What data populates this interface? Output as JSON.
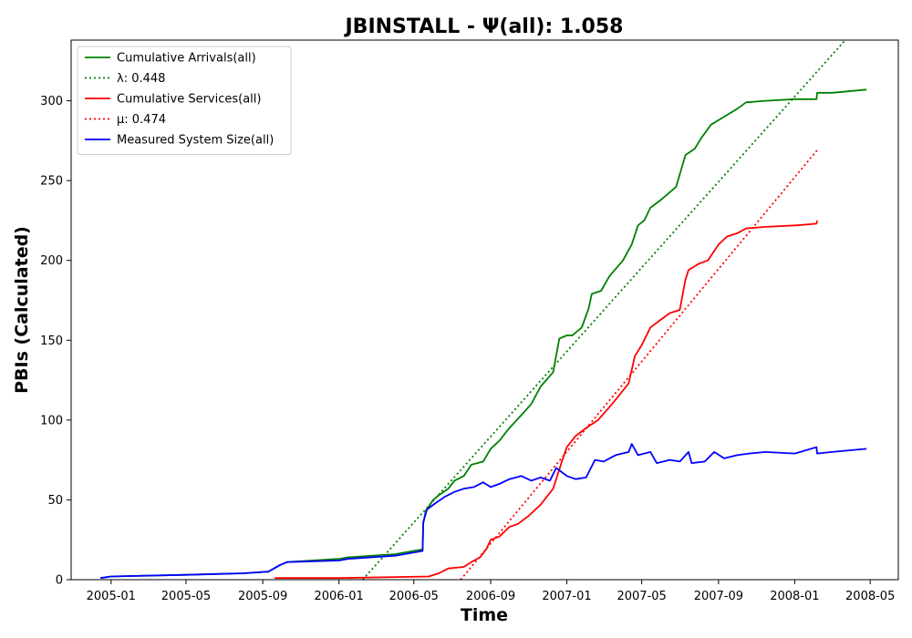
{
  "chart_data": {
    "type": "line",
    "title": "JBINSTALL -  Ψ(all): 1.058",
    "xlabel": "Time",
    "ylabel": "PBIs (Calculated)",
    "x_ticks": [
      "2005-01",
      "2005-05",
      "2005-09",
      "2006-01",
      "2006-05",
      "2006-09",
      "2007-01",
      "2007-05",
      "2007-09",
      "2008-01",
      "2008-05"
    ],
    "y_ticks": [
      0,
      50,
      100,
      150,
      200,
      250,
      300
    ],
    "xlim": [
      "2004-10-29",
      "2008-06-15"
    ],
    "ylim": [
      0,
      338
    ],
    "grid": false,
    "legend_position": "top-left",
    "legend": [
      {
        "label": "Cumulative Arrivals(all)",
        "color": "#008000",
        "style": "solid"
      },
      {
        "label": "λ: 0.448",
        "color": "#008000",
        "style": "dotted"
      },
      {
        "label": "Cumulative Services(all)",
        "color": "#ff0000",
        "style": "solid"
      },
      {
        "label": "μ: 0.474",
        "color": "#ff0000",
        "style": "dotted"
      },
      {
        "label": "Measured System Size(all)",
        "color": "#0000ff",
        "style": "solid"
      }
    ],
    "series": [
      {
        "name": "Cumulative Arrivals(all)",
        "color": "#008000",
        "style": "solid",
        "points": [
          [
            "2004-12-15",
            1
          ],
          [
            "2005-01-01",
            2
          ],
          [
            "2005-05-01",
            3
          ],
          [
            "2005-08-01",
            4
          ],
          [
            "2005-09-10",
            5
          ],
          [
            "2005-09-28",
            9
          ],
          [
            "2005-10-10",
            11
          ],
          [
            "2006-01-01",
            13
          ],
          [
            "2006-01-15",
            14
          ],
          [
            "2006-04-01",
            16
          ],
          [
            "2006-05-15",
            19
          ],
          [
            "2006-05-16",
            35
          ],
          [
            "2006-05-20",
            43
          ],
          [
            "2006-06-01",
            50
          ],
          [
            "2006-06-10",
            53
          ],
          [
            "2006-06-25",
            57
          ],
          [
            "2006-07-05",
            62
          ],
          [
            "2006-07-20",
            65
          ],
          [
            "2006-08-01",
            72
          ],
          [
            "2006-08-20",
            74
          ],
          [
            "2006-09-01",
            82
          ],
          [
            "2006-09-15",
            87
          ],
          [
            "2006-10-01",
            95
          ],
          [
            "2006-10-20",
            103
          ],
          [
            "2006-11-05",
            110
          ],
          [
            "2006-11-20",
            121
          ],
          [
            "2006-12-10",
            130
          ],
          [
            "2006-12-20",
            151
          ],
          [
            "2007-01-01",
            153
          ],
          [
            "2007-01-10",
            153
          ],
          [
            "2007-01-25",
            158
          ],
          [
            "2007-02-05",
            170
          ],
          [
            "2007-02-10",
            179
          ],
          [
            "2007-02-25",
            181
          ],
          [
            "2007-03-10",
            190
          ],
          [
            "2007-04-01",
            200
          ],
          [
            "2007-04-15",
            210
          ],
          [
            "2007-04-25",
            222
          ],
          [
            "2007-05-05",
            225
          ],
          [
            "2007-05-15",
            233
          ],
          [
            "2007-06-01",
            238
          ],
          [
            "2007-06-25",
            246
          ],
          [
            "2007-07-10",
            266
          ],
          [
            "2007-07-25",
            270
          ],
          [
            "2007-08-05",
            277
          ],
          [
            "2007-08-20",
            285
          ],
          [
            "2007-09-10",
            290
          ],
          [
            "2007-10-01",
            295
          ],
          [
            "2007-10-15",
            299
          ],
          [
            "2007-11-15",
            300
          ],
          [
            "2008-01-01",
            301
          ],
          [
            "2008-02-05",
            301
          ],
          [
            "2008-02-06",
            305
          ],
          [
            "2008-03-01",
            305
          ],
          [
            "2008-04-25",
            307
          ]
        ]
      },
      {
        "name": "λ: 0.448",
        "color": "#008000",
        "style": "dotted",
        "points": [
          [
            "2006-02-08",
            0
          ],
          [
            "2008-03-22",
            338
          ]
        ]
      },
      {
        "name": "Cumulative Services(all)",
        "color": "#ff0000",
        "style": "solid",
        "points": [
          [
            "2005-09-20",
            1
          ],
          [
            "2006-01-01",
            1
          ],
          [
            "2006-05-25",
            2
          ],
          [
            "2006-06-10",
            4
          ],
          [
            "2006-06-25",
            7
          ],
          [
            "2006-07-20",
            8
          ],
          [
            "2006-08-01",
            11
          ],
          [
            "2006-08-15",
            14
          ],
          [
            "2006-08-25",
            19
          ],
          [
            "2006-09-01",
            25
          ],
          [
            "2006-09-15",
            27
          ],
          [
            "2006-10-01",
            33
          ],
          [
            "2006-10-15",
            35
          ],
          [
            "2006-11-01",
            40
          ],
          [
            "2006-11-20",
            47
          ],
          [
            "2006-12-10",
            57
          ],
          [
            "2006-12-25",
            75
          ],
          [
            "2007-01-01",
            83
          ],
          [
            "2007-01-15",
            90
          ],
          [
            "2007-02-01",
            95
          ],
          [
            "2007-02-20",
            100
          ],
          [
            "2007-03-10",
            108
          ],
          [
            "2007-03-25",
            115
          ],
          [
            "2007-04-10",
            123
          ],
          [
            "2007-04-20",
            140
          ],
          [
            "2007-05-01",
            147
          ],
          [
            "2007-05-15",
            158
          ],
          [
            "2007-06-01",
            163
          ],
          [
            "2007-06-15",
            167
          ],
          [
            "2007-07-01",
            169
          ],
          [
            "2007-07-10",
            188
          ],
          [
            "2007-07-15",
            194
          ],
          [
            "2007-08-01",
            198
          ],
          [
            "2007-08-15",
            200
          ],
          [
            "2007-09-01",
            210
          ],
          [
            "2007-09-15",
            215
          ],
          [
            "2007-10-01",
            217
          ],
          [
            "2007-10-15",
            220
          ],
          [
            "2007-11-15",
            221
          ],
          [
            "2008-01-05",
            222
          ],
          [
            "2008-02-05",
            223
          ],
          [
            "2008-02-06",
            225
          ]
        ]
      },
      {
        "name": "μ: 0.474",
        "color": "#ff0000",
        "style": "dotted",
        "points": [
          [
            "2006-07-15",
            0
          ],
          [
            "2008-02-08",
            270
          ]
        ]
      },
      {
        "name": "Measured System Size(all)",
        "color": "#0000ff",
        "style": "solid",
        "points": [
          [
            "2004-12-15",
            1
          ],
          [
            "2005-01-01",
            2
          ],
          [
            "2005-05-01",
            3
          ],
          [
            "2005-08-01",
            4
          ],
          [
            "2005-09-10",
            5
          ],
          [
            "2005-09-28",
            9
          ],
          [
            "2005-10-10",
            11
          ],
          [
            "2006-01-01",
            12
          ],
          [
            "2006-01-15",
            13
          ],
          [
            "2006-04-01",
            15
          ],
          [
            "2006-05-15",
            18
          ],
          [
            "2006-05-16",
            36
          ],
          [
            "2006-05-22",
            44
          ],
          [
            "2006-06-05",
            48
          ],
          [
            "2006-06-20",
            52
          ],
          [
            "2006-07-05",
            55
          ],
          [
            "2006-07-20",
            57
          ],
          [
            "2006-08-05",
            58
          ],
          [
            "2006-08-20",
            61
          ],
          [
            "2006-09-01",
            58
          ],
          [
            "2006-09-15",
            60
          ],
          [
            "2006-10-01",
            63
          ],
          [
            "2006-10-20",
            65
          ],
          [
            "2006-11-05",
            62
          ],
          [
            "2006-11-20",
            64
          ],
          [
            "2006-12-05",
            62
          ],
          [
            "2006-12-15",
            70
          ],
          [
            "2007-01-01",
            65
          ],
          [
            "2007-01-15",
            63
          ],
          [
            "2007-02-01",
            64
          ],
          [
            "2007-02-15",
            75
          ],
          [
            "2007-03-01",
            74
          ],
          [
            "2007-03-20",
            78
          ],
          [
            "2007-04-10",
            80
          ],
          [
            "2007-04-15",
            85
          ],
          [
            "2007-04-25",
            78
          ],
          [
            "2007-05-15",
            80
          ],
          [
            "2007-05-25",
            73
          ],
          [
            "2007-06-15",
            75
          ],
          [
            "2007-07-01",
            74
          ],
          [
            "2007-07-15",
            80
          ],
          [
            "2007-07-20",
            73
          ],
          [
            "2007-08-10",
            74
          ],
          [
            "2007-08-25",
            80
          ],
          [
            "2007-09-10",
            76
          ],
          [
            "2007-10-01",
            78
          ],
          [
            "2007-10-20",
            79
          ],
          [
            "2007-11-15",
            80
          ],
          [
            "2008-01-01",
            79
          ],
          [
            "2008-02-05",
            83
          ],
          [
            "2008-02-06",
            79
          ],
          [
            "2008-03-01",
            80
          ],
          [
            "2008-04-25",
            82
          ]
        ]
      }
    ]
  }
}
